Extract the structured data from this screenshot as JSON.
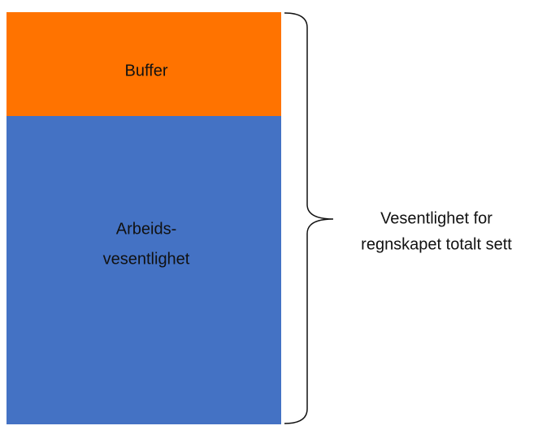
{
  "blocks": [
    {
      "label": [
        "Buffer"
      ]
    },
    {
      "label": [
        "Arbeids-",
        "vesentlighet"
      ]
    }
  ],
  "brace": {
    "label": [
      "Vesentlighet for",
      "regnskapet totalt sett"
    ]
  }
}
